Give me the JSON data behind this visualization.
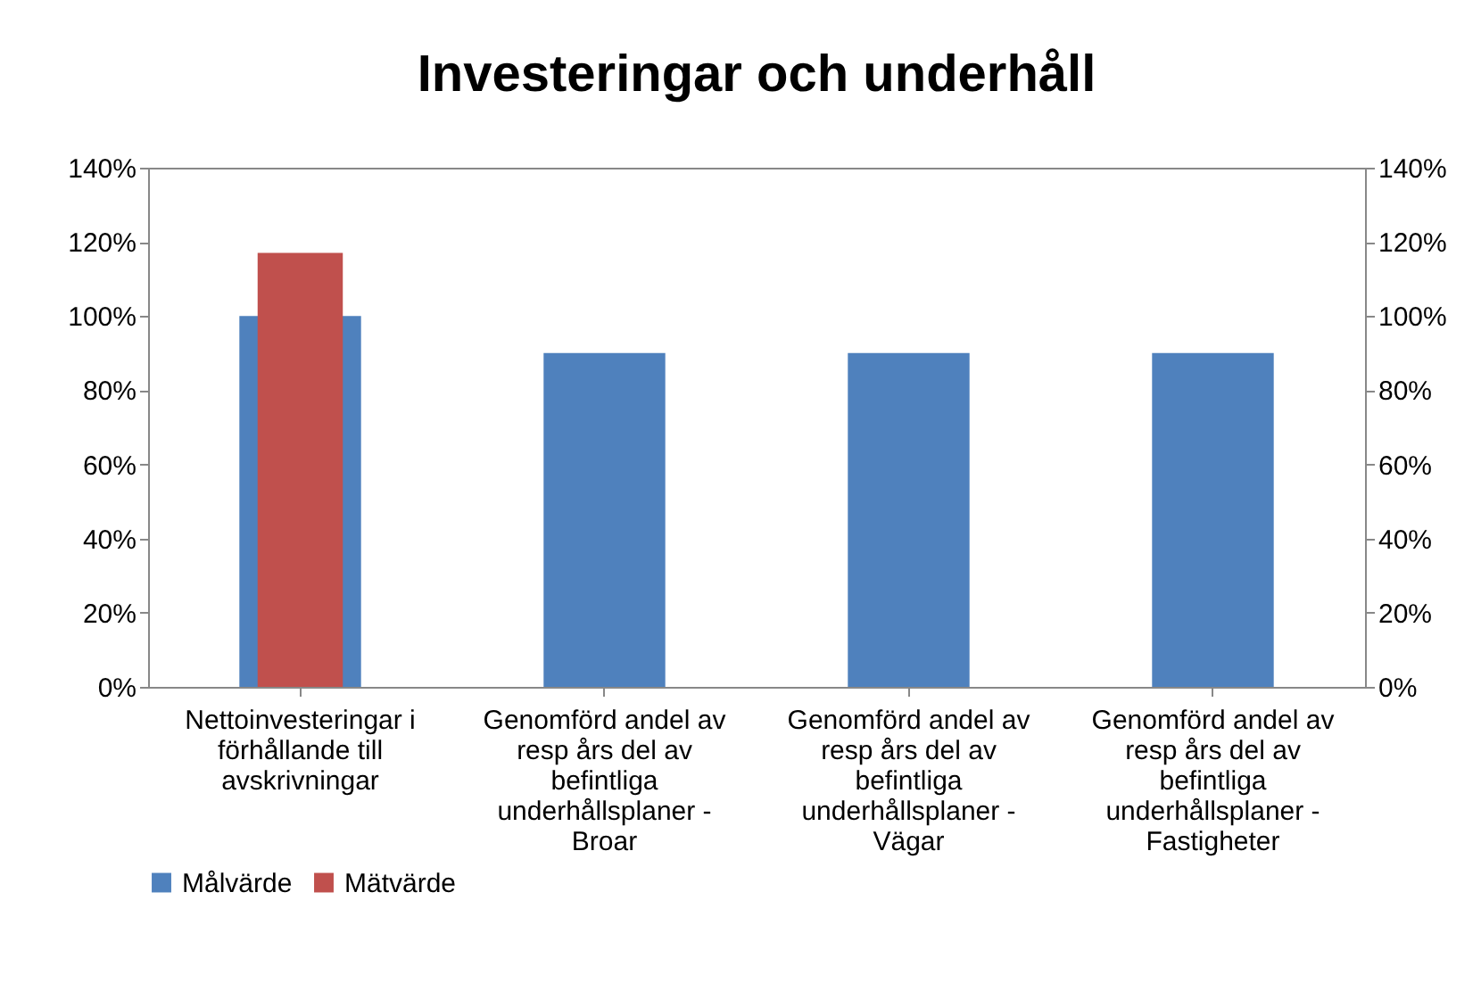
{
  "chart_data": {
    "type": "bar",
    "title": "Investeringar och underhåll",
    "categories": [
      "Nettoinvesteringar i förhållande till avskrivningar",
      "Genomförd andel av resp års del av befintliga underhållsplaner - Broar",
      "Genomförd andel av resp års del av befintliga underhållsplaner - Vägar",
      "Genomförd andel av resp års del av befintliga underhållsplaner - Fastigheter"
    ],
    "series": [
      {
        "name": "Målvärde",
        "color": "#4f81bd",
        "values": [
          100,
          90,
          90,
          90
        ]
      },
      {
        "name": "Mätvärde",
        "color": "#c0504d",
        "values": [
          117,
          null,
          null,
          null
        ],
        "axis": "y2"
      }
    ],
    "ylim": [
      0,
      140
    ],
    "yticks": [
      {
        "value": 0,
        "label": "0%"
      },
      {
        "value": 20,
        "label": "20%"
      },
      {
        "value": 40,
        "label": "40%"
      },
      {
        "value": 60,
        "label": "60%"
      },
      {
        "value": 80,
        "label": "80%"
      },
      {
        "value": 100,
        "label": "100%"
      },
      {
        "value": 120,
        "label": "120%"
      },
      {
        "value": 140,
        "label": "140%"
      }
    ],
    "y2lim": [
      0,
      140
    ],
    "y2ticks": [
      {
        "value": 0,
        "label": "0%"
      },
      {
        "value": 20,
        "label": "20%"
      },
      {
        "value": 40,
        "label": "40%"
      },
      {
        "value": 60,
        "label": "60%"
      },
      {
        "value": 80,
        "label": "80%"
      },
      {
        "value": 100,
        "label": "100%"
      },
      {
        "value": 120,
        "label": "120%"
      },
      {
        "value": 140,
        "label": "140%"
      }
    ],
    "legend": "bottom"
  }
}
